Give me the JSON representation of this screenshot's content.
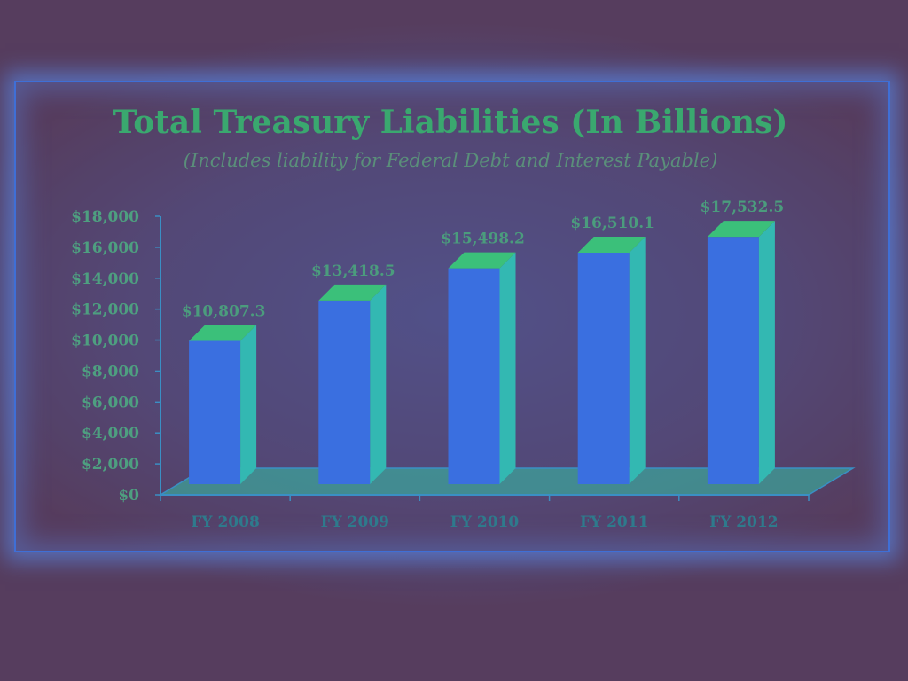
{
  "chart_data": {
    "type": "bar",
    "title": "Total Treasury Liabilities (In Billions)",
    "subtitle": "(Includes liability for Federal Debt and Interest Payable)",
    "categories": [
      "FY 2008",
      "FY 2009",
      "FY 2010",
      "FY 2011",
      "FY 2012"
    ],
    "values": [
      10807.3,
      13418.5,
      15498.2,
      16510.1,
      17532.5
    ],
    "value_labels": [
      "$10,807.3",
      "$13,418.5",
      "$15,498.2",
      "$16,510.1",
      "$17,532.5"
    ],
    "y_ticks": [
      0,
      2000,
      4000,
      6000,
      8000,
      10000,
      12000,
      14000,
      16000,
      18000
    ],
    "y_tick_labels": [
      "$0",
      "$2,000",
      "$4,000",
      "$6,000",
      "$8,000",
      "$10,000",
      "$12,000",
      "$14,000",
      "$16,000",
      "$18,000"
    ],
    "ylim": [
      0,
      18000
    ],
    "xlabel": "",
    "ylabel": "",
    "grid": false,
    "colors": {
      "bar_front": "#3a6fe0",
      "bar_side": "#33b8b2",
      "bar_top": "#3bc07a",
      "floor": "#35c2a8",
      "axis": "#3a8fc4"
    }
  }
}
